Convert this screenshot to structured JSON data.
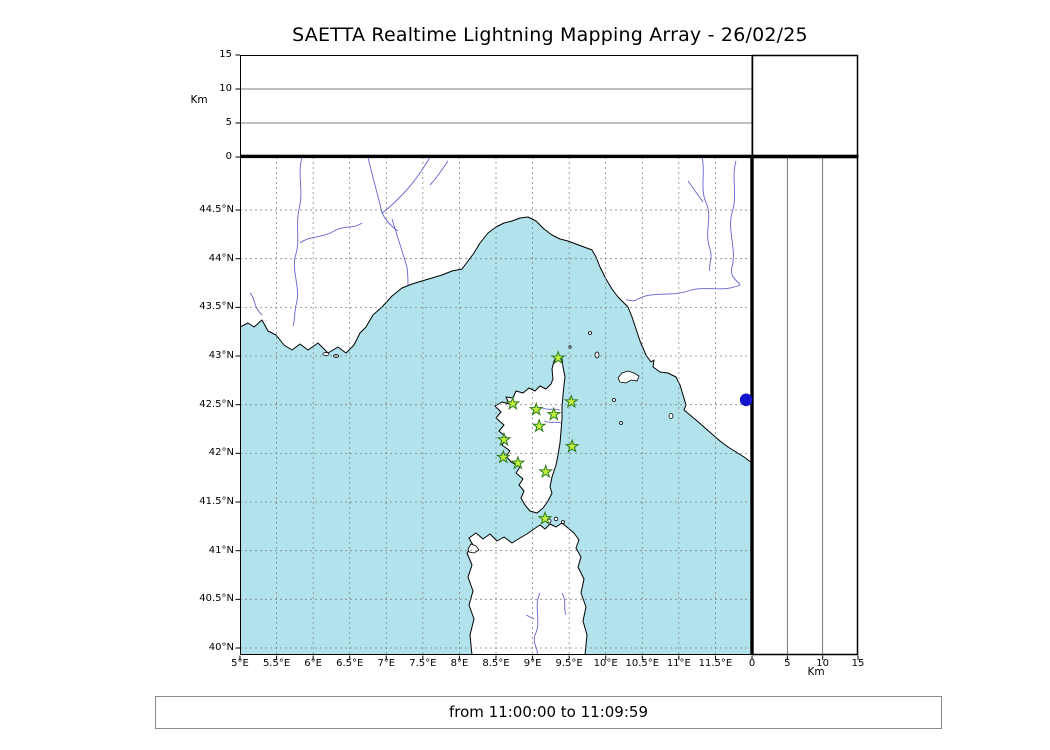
{
  "title": "SAETTA Realtime Lightning Mapping Array - 26/02/25",
  "status": {
    "text": "from 11:00:00 to 11:09:59"
  },
  "axes": {
    "km_label_left": "Km",
    "km_label_right": "Km",
    "alt_ticks": {
      "values": [
        15,
        10,
        5,
        0
      ],
      "labels": [
        "15",
        "10",
        "5",
        "0"
      ]
    },
    "alt_ticks_right": {
      "values": [
        0,
        5,
        10,
        15
      ],
      "labels": [
        "0",
        "5",
        "10",
        "15"
      ]
    },
    "lat_ticks": {
      "values": [
        44.5,
        44,
        43.5,
        43,
        42.5,
        42,
        41.5,
        41,
        40.5,
        40
      ],
      "labels": [
        "44.5°N",
        "44°N",
        "43.5°N",
        "43°N",
        "42.5°N",
        "42°N",
        "41.5°N",
        "41°N",
        "40.5°N",
        "40°N"
      ]
    },
    "lon_ticks": {
      "values": [
        5,
        5.5,
        6,
        6.5,
        7,
        7.5,
        8,
        8.5,
        9,
        9.5,
        10,
        10.5,
        11,
        11.5
      ],
      "labels": [
        "5°E",
        "5.5°E",
        "6°E",
        "6.5°E",
        "7°E",
        "7.5°E",
        "8°E",
        "8.5°E",
        "9°E",
        "9.5°E",
        "10°E",
        "10.5°E",
        "11°E",
        "11.5°E"
      ]
    }
  },
  "chart_data": {
    "type": "scatter",
    "title": "SAETTA Realtime Lightning Mapping Array - 26/02/25",
    "time_window": "from 11:00:00 to 11:09:59",
    "map_extent": {
      "lon_min": 5,
      "lon_max": 12,
      "lat_min": 39.928,
      "lat_max": 45.045
    },
    "grid": true,
    "grid_step_deg": 0.5,
    "altitude_axis": {
      "unit": "Km",
      "min": 0,
      "max": 15,
      "ticks": [
        0,
        5,
        10,
        15
      ],
      "gridlines": [
        5,
        10
      ]
    },
    "stations": {
      "marker": "star",
      "points": [
        {
          "lon": 9.35,
          "lat": 42.98
        },
        {
          "lon": 8.73,
          "lat": 42.51
        },
        {
          "lon": 9.05,
          "lat": 42.45
        },
        {
          "lon": 9.29,
          "lat": 42.4
        },
        {
          "lon": 9.53,
          "lat": 42.53
        },
        {
          "lon": 9.09,
          "lat": 42.28
        },
        {
          "lon": 8.61,
          "lat": 42.14
        },
        {
          "lon": 9.54,
          "lat": 42.07
        },
        {
          "lon": 8.6,
          "lat": 41.96
        },
        {
          "lon": 8.8,
          "lat": 41.9
        },
        {
          "lon": 9.18,
          "lat": 41.81
        },
        {
          "lon": 9.17,
          "lat": 41.33
        }
      ]
    },
    "events": {
      "marker": "circle",
      "points": [
        {
          "lon": 11.92,
          "lat": 42.55
        }
      ]
    },
    "colors": {
      "sea": "#b2e2ec",
      "land": "#ffffff",
      "coast": "#000000",
      "river": "#5353cc",
      "grid": "#7a7a7a",
      "station_fill": "#c0f03c",
      "station_edge": "#2d7a1e",
      "event": "#1414cc"
    }
  }
}
